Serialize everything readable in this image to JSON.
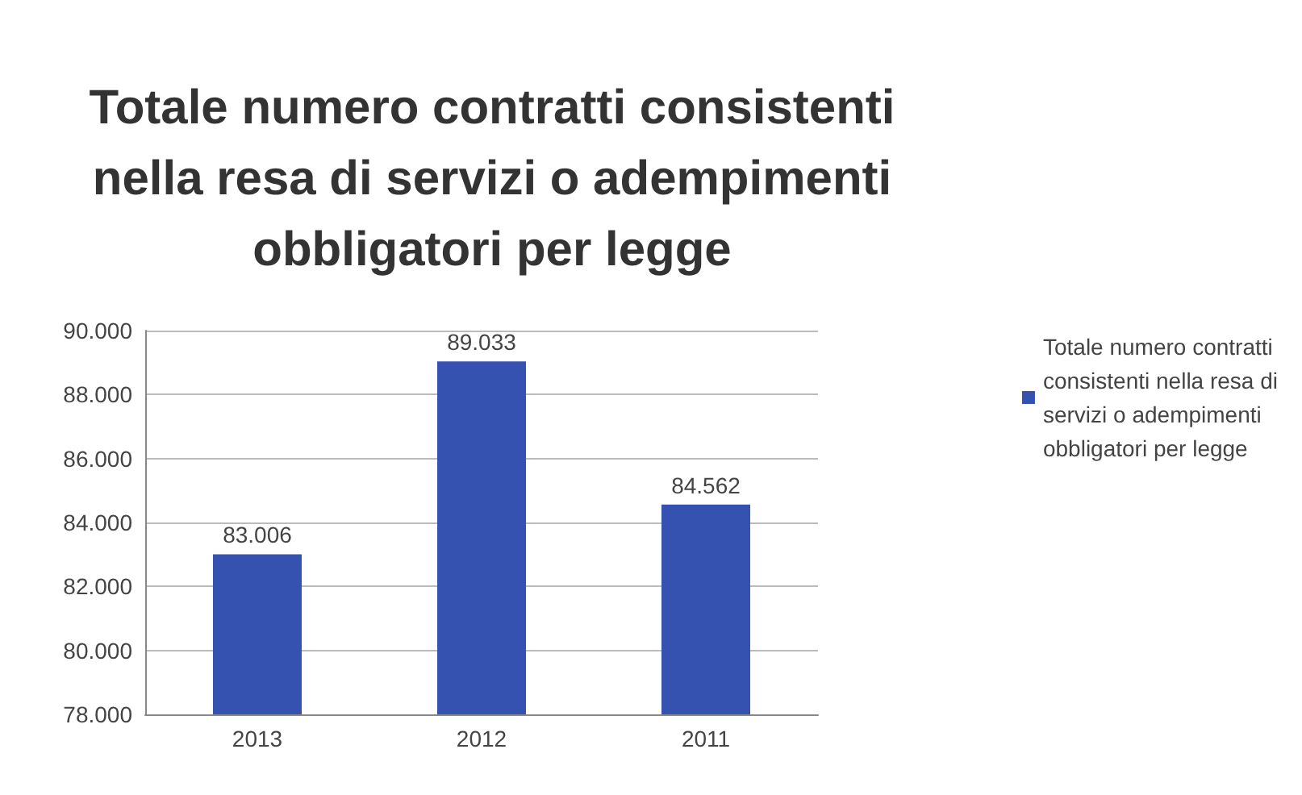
{
  "chart_data": {
    "type": "bar",
    "title": "Totale numero contratti consistenti nella resa di servizi o adempimenti obbligatori per legge",
    "categories": [
      "2013",
      "2012",
      "2011"
    ],
    "series": [
      {
        "name": "Totale numero contratti consistenti nella resa di servizi o adempimenti obbligatori per legge",
        "color": "#3552b0",
        "values": [
          83006,
          89033,
          84562
        ],
        "value_labels": [
          "83.006",
          "89.033",
          "84.562"
        ]
      }
    ],
    "ylim": [
      78000,
      90000
    ],
    "yticks": [
      {
        "value": 78000,
        "label": "78.000"
      },
      {
        "value": 80000,
        "label": "80.000"
      },
      {
        "value": 82000,
        "label": "82.000"
      },
      {
        "value": 84000,
        "label": "84.000"
      },
      {
        "value": 86000,
        "label": "86.000"
      },
      {
        "value": 88000,
        "label": "88.000"
      },
      {
        "value": 90000,
        "label": "90.000"
      }
    ],
    "grid": "y",
    "legend": "right"
  }
}
